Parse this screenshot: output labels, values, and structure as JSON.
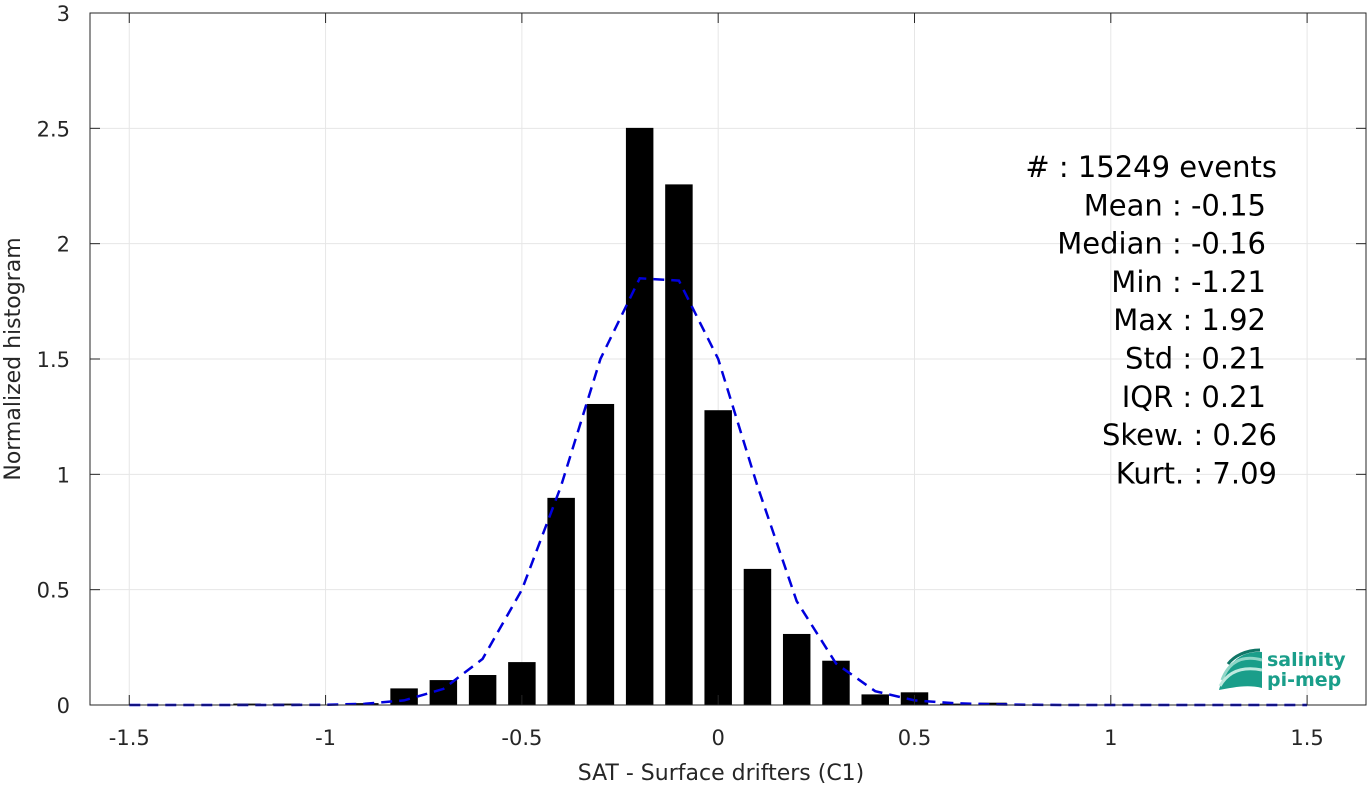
{
  "chart_data": {
    "type": "bar",
    "xlabel": "SAT - Surface drifters (C1)",
    "ylabel": "Normalized histogram",
    "xlim": [
      -1.6,
      1.65
    ],
    "ylim": [
      0,
      3
    ],
    "grid": true,
    "x_ticks": [
      -1.5,
      -1,
      -0.5,
      0,
      0.5,
      1,
      1.5
    ],
    "x_tick_labels": [
      "-1.5",
      "-1",
      "-0.5",
      "0",
      "0.5",
      "1",
      "1.5"
    ],
    "y_ticks": [
      0,
      0.5,
      1,
      1.5,
      2,
      2.5,
      3
    ],
    "y_tick_labels": [
      "0",
      "0.5",
      "1",
      "1.5",
      "2",
      "2.5",
      "3"
    ],
    "bar_width": 0.07,
    "bar_color": "#000000",
    "bars": {
      "x": [
        -1.5,
        -1.4,
        -1.3,
        -1.2,
        -1.1,
        -1.0,
        -0.9,
        -0.8,
        -0.7,
        -0.6,
        -0.5,
        -0.4,
        -0.3,
        -0.2,
        -0.1,
        0.0,
        0.1,
        0.2,
        0.3,
        0.4,
        0.5,
        0.6,
        0.7,
        0.8,
        0.9,
        1.0,
        1.1,
        1.2,
        1.3,
        1.4,
        1.5
      ],
      "values": [
        0,
        0,
        0,
        0.006,
        0.006,
        0,
        0.008,
        0.072,
        0.108,
        0.13,
        0.186,
        0.898,
        1.305,
        2.502,
        2.257,
        1.278,
        0.59,
        0.308,
        0.192,
        0.046,
        0.055,
        0.006,
        0.01,
        0.002,
        0,
        0,
        0,
        0,
        0,
        0,
        0
      ]
    },
    "fit_line": {
      "style": "dashed",
      "color": "#0000dd",
      "x": [
        -1.5,
        -1.4,
        -1.3,
        -1.2,
        -1.1,
        -1.0,
        -0.9,
        -0.8,
        -0.7,
        -0.6,
        -0.5,
        -0.4,
        -0.3,
        -0.2,
        -0.1,
        0.0,
        0.1,
        0.2,
        0.3,
        0.4,
        0.5,
        0.6,
        0.7,
        0.8,
        0.9,
        1.0,
        1.1,
        1.2,
        1.3,
        1.4,
        1.5
      ],
      "values": [
        0,
        0,
        0,
        0,
        0,
        0.001,
        0.005,
        0.02,
        0.07,
        0.2,
        0.5,
        0.95,
        1.5,
        1.85,
        1.84,
        1.5,
        0.95,
        0.45,
        0.18,
        0.06,
        0.02,
        0.008,
        0.003,
        0.001,
        0,
        0,
        0,
        0,
        0,
        0,
        0
      ]
    },
    "stats": [
      {
        "text": "#  : 15249 events",
        "anchor": "end-wide"
      },
      {
        "text": "Mean : -0.15",
        "anchor": "end"
      },
      {
        "text": "Median : -0.16",
        "anchor": "end"
      },
      {
        "text": "Min : -1.21",
        "anchor": "end"
      },
      {
        "text": "Max : 1.92",
        "anchor": "end"
      },
      {
        "text": "Std : 0.21",
        "anchor": "end"
      },
      {
        "text": "IQR : 0.21",
        "anchor": "end"
      },
      {
        "text": "Skew. : 0.26",
        "anchor": "end-wide"
      },
      {
        "text": "Kurt. : 7.09",
        "anchor": "end-wide"
      }
    ]
  },
  "logo": {
    "line1": "salinity",
    "line2": "pi-mep",
    "color": "#1a9e8a",
    "icon": "salinity-waves-icon"
  }
}
